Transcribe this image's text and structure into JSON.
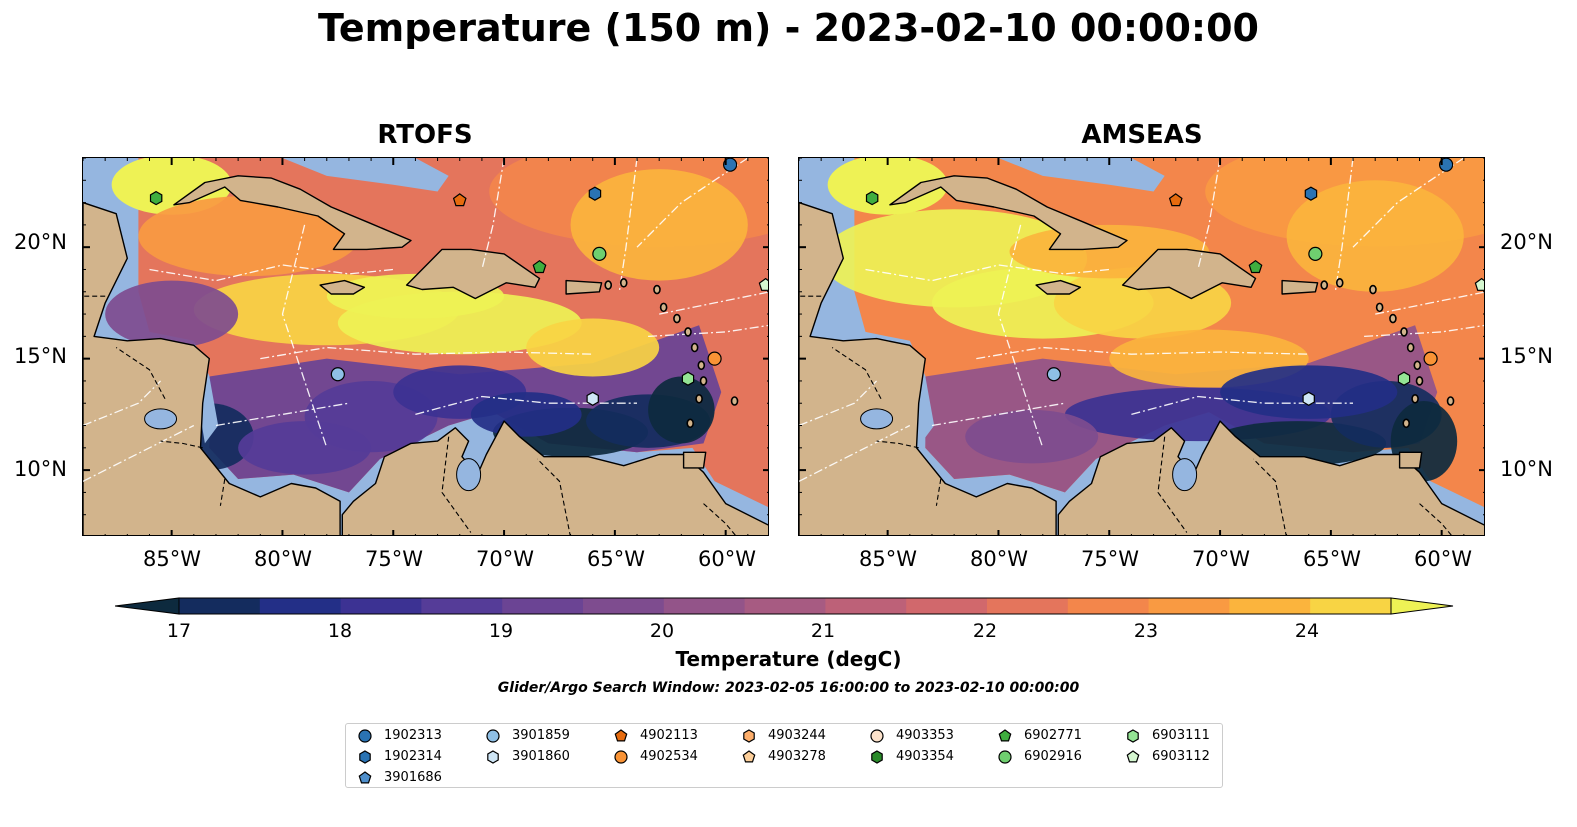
{
  "title": "Temperature (150 m) - 2023-02-10 00:00:00",
  "panels": [
    {
      "name": "RTOFS"
    },
    {
      "name": "AMSEAS"
    }
  ],
  "lat_labels": [
    "20°N",
    "15°N",
    "10°N"
  ],
  "lon_labels": [
    "85°W",
    "80°W",
    "75°W",
    "70°W",
    "65°W",
    "60°W"
  ],
  "colorbar": {
    "label": "Temperature (degC)",
    "ticks": [
      "17",
      "18",
      "19",
      "20",
      "21",
      "22",
      "23",
      "24"
    ],
    "min": 17,
    "max": 24.5,
    "step": 0.5,
    "colors": [
      "#0d2a3e",
      "#142c5e",
      "#232f87",
      "#3c3293",
      "#553c98",
      "#6b4494",
      "#7e4c8f",
      "#935489",
      "#a75b82",
      "#bd6178",
      "#d1686c",
      "#e4755c",
      "#f3864b",
      "#f99a42",
      "#fbb43d",
      "#f8d444",
      "#eef255"
    ]
  },
  "search_window": "Glider/Argo Search Window: 2023-02-05 16:00:00 to 2023-02-10 00:00:00",
  "extent": {
    "lon": [
      -89,
      -58
    ],
    "lat": [
      7,
      24
    ]
  },
  "floats": [
    {
      "id": "1902313",
      "marker": "circle",
      "color": "#2a73b3",
      "lon": -59.8,
      "lat": 23.7
    },
    {
      "id": "1902314",
      "marker": "hexagon",
      "color": "#2a73b3",
      "lon": -65.9,
      "lat": 22.4
    },
    {
      "id": "3901686",
      "marker": "pentagon",
      "color": "#4f8fcc",
      "lon": null,
      "lat": null
    },
    {
      "id": "3901859",
      "marker": "circle",
      "color": "#8fc0e6",
      "lon": -77.5,
      "lat": 14.3
    },
    {
      "id": "3901860",
      "marker": "hexagon",
      "color": "#cfe6f6",
      "lon": -66.0,
      "lat": 13.2
    },
    {
      "id": "4902113",
      "marker": "pentagon",
      "color": "#e66b0e",
      "lon": -72.0,
      "lat": 22.1
    },
    {
      "id": "4902534",
      "marker": "circle",
      "color": "#f99335",
      "lon": -60.5,
      "lat": 15.0
    },
    {
      "id": "4903244",
      "marker": "hexagon",
      "color": "#fdae6b",
      "lon": null,
      "lat": null
    },
    {
      "id": "4903278",
      "marker": "pentagon",
      "color": "#fdcf9a",
      "lon": null,
      "lat": null
    },
    {
      "id": "4903353",
      "marker": "circle",
      "color": "#fde3cc",
      "lon": null,
      "lat": null
    },
    {
      "id": "4903354",
      "marker": "hexagon",
      "color": "#2a8a2a",
      "lon": null,
      "lat": null
    },
    {
      "id": "6902771",
      "marker": "pentagon",
      "color": "#3fae3f",
      "lon": -68.4,
      "lat": 19.1
    },
    {
      "id": "6902916",
      "marker": "circle",
      "color": "#6fcf6f",
      "lon": -65.7,
      "lat": 19.7
    },
    {
      "id": "6903111",
      "marker": "hexagon",
      "color": "#94e494",
      "lon": -61.7,
      "lat": 14.1
    },
    {
      "id": "6903112",
      "marker": "pentagon",
      "color": "#d5f7d0",
      "lon": -58.2,
      "lat": 18.3
    },
    {
      "id": "6902771-b",
      "marker": "hexagon",
      "color": "#3fae3f",
      "lon": -85.7,
      "lat": 22.2
    }
  ],
  "legend_order": [
    "1902313",
    "1902314",
    "3901686",
    "3901859",
    "3901860",
    "4902113",
    "4902534",
    "4903244",
    "4903278",
    "4903353",
    "4903354",
    "6902771",
    "6902916",
    "6903111",
    "6903112"
  ]
}
